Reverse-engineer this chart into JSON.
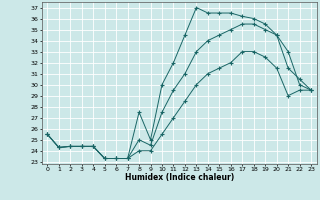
{
  "title": "",
  "xlabel": "Humidex (Indice chaleur)",
  "background_color": "#cce8e8",
  "grid_color": "#ffffff",
  "line_color": "#1a6666",
  "xlim": [
    -0.5,
    23.5
  ],
  "ylim": [
    22.8,
    37.5
  ],
  "xticks": [
    0,
    1,
    2,
    3,
    4,
    5,
    6,
    7,
    8,
    9,
    10,
    11,
    12,
    13,
    14,
    15,
    16,
    17,
    18,
    19,
    20,
    21,
    22,
    23
  ],
  "yticks": [
    23,
    24,
    25,
    26,
    27,
    28,
    29,
    30,
    31,
    32,
    33,
    34,
    35,
    36,
    37
  ],
  "curve1_x": [
    0,
    1,
    2,
    3,
    4,
    5,
    6,
    7,
    8,
    9,
    10,
    11,
    12,
    13,
    14,
    15,
    16,
    17,
    18,
    19,
    20,
    21,
    22,
    23
  ],
  "curve1_y": [
    25.5,
    24.3,
    24.4,
    24.4,
    24.4,
    23.3,
    23.3,
    23.3,
    27.5,
    25.0,
    30.0,
    32.0,
    34.5,
    37.0,
    36.5,
    36.5,
    36.5,
    36.2,
    36.0,
    35.5,
    34.5,
    33.0,
    30.0,
    29.5
  ],
  "curve2_x": [
    0,
    1,
    2,
    3,
    4,
    5,
    6,
    7,
    8,
    9,
    10,
    11,
    12,
    13,
    14,
    15,
    16,
    17,
    18,
    19,
    20,
    21,
    22,
    23
  ],
  "curve2_y": [
    25.5,
    24.3,
    24.4,
    24.4,
    24.4,
    23.3,
    23.3,
    23.3,
    25.0,
    24.5,
    27.5,
    29.5,
    31.0,
    33.0,
    34.0,
    34.5,
    35.0,
    35.5,
    35.5,
    35.0,
    34.5,
    31.5,
    30.5,
    29.5
  ],
  "curve3_x": [
    0,
    1,
    2,
    3,
    4,
    5,
    6,
    7,
    8,
    9,
    10,
    11,
    12,
    13,
    14,
    15,
    16,
    17,
    18,
    19,
    20,
    21,
    22,
    23
  ],
  "curve3_y": [
    25.5,
    24.3,
    24.4,
    24.4,
    24.4,
    23.3,
    23.3,
    23.3,
    24.0,
    24.0,
    25.5,
    27.0,
    28.5,
    30.0,
    31.0,
    31.5,
    32.0,
    33.0,
    33.0,
    32.5,
    31.5,
    29.0,
    29.5,
    29.5
  ]
}
